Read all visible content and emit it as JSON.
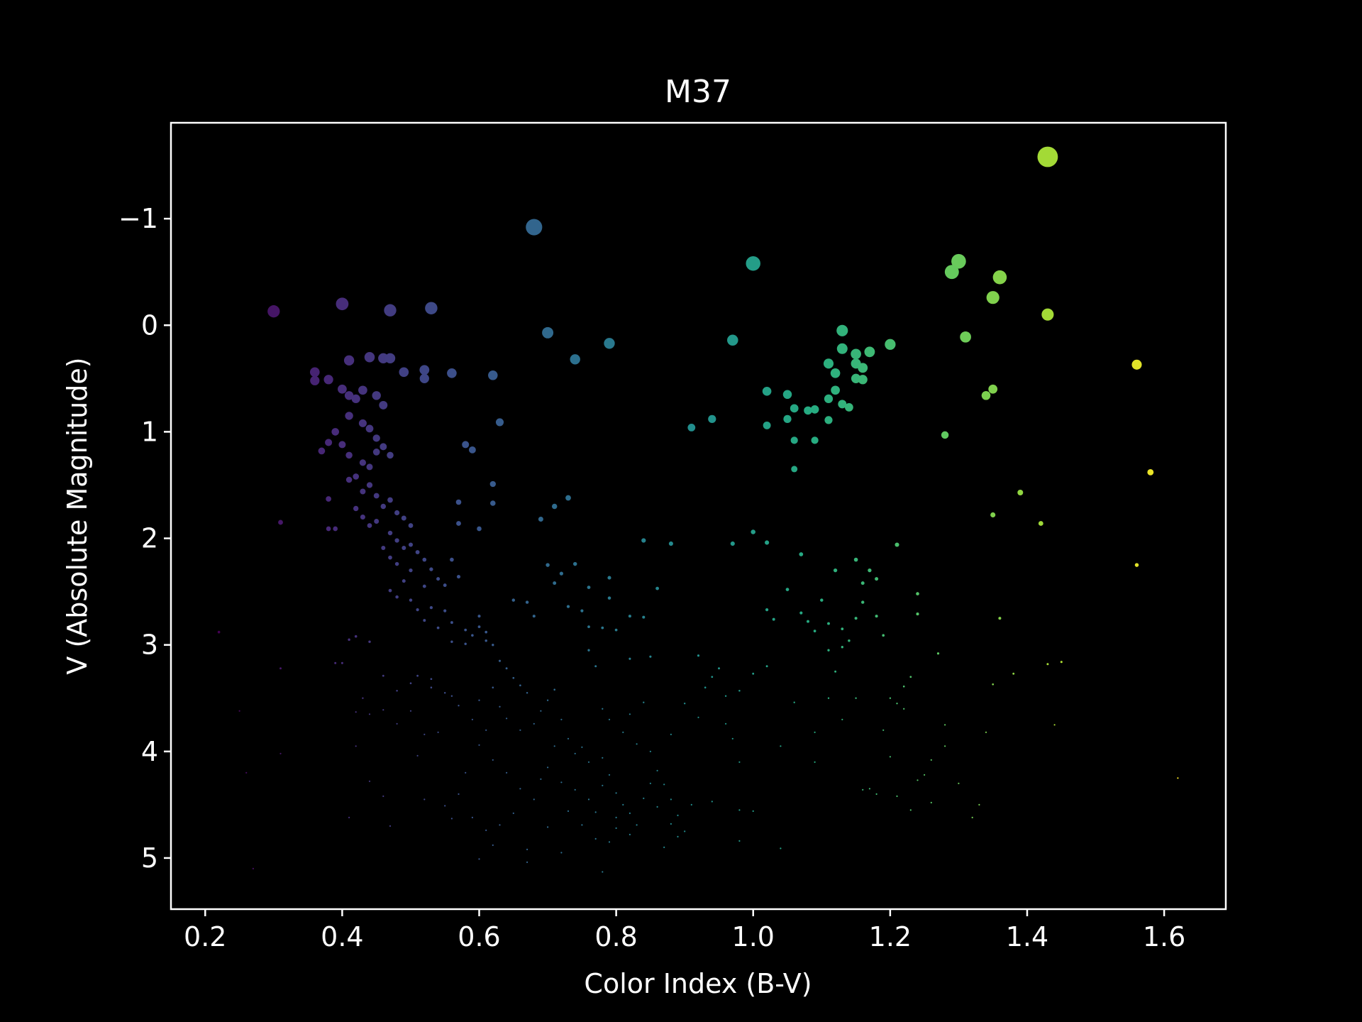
{
  "chart_data": {
    "type": "scatter",
    "title": "M37",
    "xlabel": "Color Index (B-V)",
    "ylabel": "V (Absolute Magnitude)",
    "xlim": [
      0.15,
      1.69
    ],
    "ylim": [
      5.48,
      -1.9
    ],
    "y_inverted": true,
    "grid": false,
    "legend": "none",
    "colormap": "viridis",
    "color_encodes": "x",
    "size_encodes": "brightness",
    "background": "#000000",
    "foreground": "#ffffff",
    "xticks": [
      {
        "value": 0.2,
        "label": "0.2"
      },
      {
        "value": 0.4,
        "label": "0.4"
      },
      {
        "value": 0.6,
        "label": "0.6"
      },
      {
        "value": 0.8,
        "label": "0.8"
      },
      {
        "value": 1.0,
        "label": "1.0"
      },
      {
        "value": 1.2,
        "label": "1.2"
      },
      {
        "value": 1.4,
        "label": "1.4"
      },
      {
        "value": 1.6,
        "label": "1.6"
      }
    ],
    "yticks": [
      {
        "value": -1,
        "label": "−1"
      },
      {
        "value": 0,
        "label": "0"
      },
      {
        "value": 1,
        "label": "1"
      },
      {
        "value": 2,
        "label": "2"
      },
      {
        "value": 3,
        "label": "3"
      },
      {
        "value": 4,
        "label": "4"
      },
      {
        "value": 5,
        "label": "5"
      }
    ],
    "points": [
      [
        1.43,
        -1.58
      ],
      [
        0.68,
        -0.92
      ],
      [
        1.0,
        -0.58
      ],
      [
        1.3,
        -0.6
      ],
      [
        1.29,
        -0.5
      ],
      [
        1.36,
        -0.45
      ],
      [
        1.35,
        -0.26
      ],
      [
        0.3,
        -0.13
      ],
      [
        0.4,
        -0.2
      ],
      [
        0.47,
        -0.14
      ],
      [
        0.53,
        -0.16
      ],
      [
        1.43,
        -0.1
      ],
      [
        0.7,
        0.07
      ],
      [
        0.74,
        0.32
      ],
      [
        0.79,
        0.17
      ],
      [
        0.97,
        0.14
      ],
      [
        1.13,
        0.05
      ],
      [
        1.31,
        0.11
      ],
      [
        1.13,
        0.22
      ],
      [
        1.15,
        0.27
      ],
      [
        1.17,
        0.25
      ],
      [
        1.2,
        0.18
      ],
      [
        1.11,
        0.36
      ],
      [
        1.15,
        0.36
      ],
      [
        1.16,
        0.4
      ],
      [
        1.12,
        0.45
      ],
      [
        1.15,
        0.5
      ],
      [
        1.16,
        0.51
      ],
      [
        1.02,
        0.62
      ],
      [
        1.05,
        0.65
      ],
      [
        1.12,
        0.61
      ],
      [
        1.11,
        0.69
      ],
      [
        1.13,
        0.74
      ],
      [
        1.14,
        0.77
      ],
      [
        1.06,
        0.78
      ],
      [
        1.09,
        0.79
      ],
      [
        1.08,
        0.8
      ],
      [
        1.05,
        0.88
      ],
      [
        1.02,
        0.94
      ],
      [
        0.94,
        0.88
      ],
      [
        0.91,
        0.96
      ],
      [
        1.11,
        0.89
      ],
      [
        1.06,
        1.08
      ],
      [
        1.09,
        1.08
      ],
      [
        1.06,
        1.35
      ],
      [
        1.28,
        1.03
      ],
      [
        1.34,
        0.66
      ],
      [
        1.35,
        0.6
      ],
      [
        1.34,
        0.66
      ],
      [
        1.56,
        0.37
      ],
      [
        1.58,
        1.38
      ],
      [
        1.39,
        1.57
      ],
      [
        1.35,
        1.78
      ],
      [
        1.42,
        1.86
      ],
      [
        1.56,
        2.25
      ],
      [
        0.36,
        0.44
      ],
      [
        0.36,
        0.52
      ],
      [
        0.38,
        0.51
      ],
      [
        0.41,
        0.33
      ],
      [
        0.44,
        0.3
      ],
      [
        0.46,
        0.31
      ],
      [
        0.47,
        0.31
      ],
      [
        0.49,
        0.44
      ],
      [
        0.52,
        0.42
      ],
      [
        0.52,
        0.5
      ],
      [
        0.56,
        0.45
      ],
      [
        0.62,
        0.47
      ],
      [
        0.63,
        0.91
      ],
      [
        0.58,
        1.12
      ],
      [
        0.59,
        1.17
      ],
      [
        0.62,
        1.49
      ],
      [
        0.62,
        1.67
      ],
      [
        0.69,
        1.82
      ],
      [
        0.71,
        1.7
      ],
      [
        0.73,
        1.62
      ],
      [
        0.6,
        1.91
      ],
      [
        0.57,
        1.66
      ],
      [
        0.57,
        1.86
      ],
      [
        0.56,
        2.2
      ],
      [
        0.57,
        2.36
      ],
      [
        0.4,
        0.6
      ],
      [
        0.41,
        0.66
      ],
      [
        0.42,
        0.69
      ],
      [
        0.43,
        0.61
      ],
      [
        0.45,
        0.66
      ],
      [
        0.46,
        0.75
      ],
      [
        0.41,
        0.85
      ],
      [
        0.43,
        0.92
      ],
      [
        0.44,
        0.97
      ],
      [
        0.45,
        1.06
      ],
      [
        0.4,
        1.12
      ],
      [
        0.41,
        1.22
      ],
      [
        0.43,
        1.29
      ],
      [
        0.39,
        1.0
      ],
      [
        0.38,
        1.1
      ],
      [
        0.45,
        1.19
      ],
      [
        0.46,
        1.14
      ],
      [
        0.47,
        1.22
      ],
      [
        0.44,
        1.33
      ],
      [
        0.42,
        1.42
      ],
      [
        0.44,
        1.5
      ],
      [
        0.41,
        1.45
      ],
      [
        0.43,
        1.56
      ],
      [
        0.45,
        1.6
      ],
      [
        0.46,
        1.7
      ],
      [
        0.47,
        1.64
      ],
      [
        0.42,
        1.72
      ],
      [
        0.43,
        1.8
      ],
      [
        0.44,
        1.88
      ],
      [
        0.45,
        1.84
      ],
      [
        0.48,
        1.76
      ],
      [
        0.49,
        1.81
      ],
      [
        0.5,
        1.88
      ],
      [
        0.47,
        1.95
      ],
      [
        0.48,
        2.02
      ],
      [
        0.49,
        2.09
      ],
      [
        0.46,
        2.09
      ],
      [
        0.47,
        2.18
      ],
      [
        0.48,
        2.24
      ],
      [
        0.5,
        2.06
      ],
      [
        0.51,
        2.13
      ],
      [
        0.52,
        2.2
      ],
      [
        0.5,
        2.3
      ],
      [
        0.49,
        2.4
      ],
      [
        0.47,
        2.49
      ],
      [
        0.48,
        2.55
      ],
      [
        0.53,
        2.29
      ],
      [
        0.52,
        2.45
      ],
      [
        0.54,
        2.38
      ],
      [
        0.55,
        2.44
      ],
      [
        0.5,
        2.58
      ],
      [
        0.51,
        2.67
      ],
      [
        0.53,
        2.65
      ],
      [
        0.55,
        2.68
      ],
      [
        0.52,
        2.77
      ],
      [
        0.54,
        2.84
      ],
      [
        0.56,
        2.79
      ],
      [
        0.58,
        2.86
      ],
      [
        0.59,
        2.91
      ],
      [
        0.56,
        2.97
      ],
      [
        0.58,
        2.99
      ],
      [
        0.6,
        2.83
      ],
      [
        0.61,
        2.88
      ],
      [
        0.6,
        2.73
      ],
      [
        0.61,
        2.96
      ],
      [
        0.38,
        1.91
      ],
      [
        0.39,
        1.91
      ],
      [
        0.38,
        1.63
      ],
      [
        0.37,
        1.18
      ],
      [
        0.31,
        1.85
      ],
      [
        0.22,
        2.88
      ],
      [
        0.31,
        3.22
      ],
      [
        0.25,
        3.62
      ],
      [
        0.26,
        4.2
      ],
      [
        0.31,
        4.02
      ],
      [
        0.27,
        5.1
      ],
      [
        0.39,
        3.17
      ],
      [
        0.4,
        3.17
      ],
      [
        0.41,
        2.95
      ],
      [
        0.42,
        2.92
      ],
      [
        0.43,
        3.5
      ],
      [
        0.44,
        2.97
      ],
      [
        0.46,
        3.29
      ],
      [
        0.48,
        3.43
      ],
      [
        0.5,
        3.36
      ],
      [
        0.51,
        3.29
      ],
      [
        0.53,
        3.4
      ],
      [
        0.53,
        3.32
      ],
      [
        0.55,
        3.45
      ],
      [
        0.42,
        3.63
      ],
      [
        0.44,
        3.65
      ],
      [
        0.46,
        3.61
      ],
      [
        0.48,
        3.74
      ],
      [
        0.5,
        3.62
      ],
      [
        0.52,
        3.84
      ],
      [
        0.51,
        4.04
      ],
      [
        0.54,
        3.82
      ],
      [
        0.42,
        3.95
      ],
      [
        0.44,
        4.28
      ],
      [
        0.46,
        4.42
      ],
      [
        0.41,
        4.62
      ],
      [
        0.47,
        4.7
      ],
      [
        0.52,
        4.45
      ],
      [
        0.55,
        4.51
      ],
      [
        0.56,
        4.63
      ],
      [
        0.58,
        4.2
      ],
      [
        0.57,
        4.4
      ],
      [
        0.59,
        4.62
      ],
      [
        0.6,
        5.01
      ],
      [
        0.62,
        4.88
      ],
      [
        0.67,
        5.04
      ],
      [
        0.67,
        4.92
      ],
      [
        0.72,
        4.95
      ],
      [
        0.78,
        5.13
      ],
      [
        0.62,
        3.0
      ],
      [
        0.63,
        3.15
      ],
      [
        0.64,
        3.22
      ],
      [
        0.65,
        3.31
      ],
      [
        0.66,
        3.38
      ],
      [
        0.67,
        3.45
      ],
      [
        0.62,
        3.4
      ],
      [
        0.6,
        3.52
      ],
      [
        0.63,
        3.58
      ],
      [
        0.64,
        3.69
      ],
      [
        0.66,
        3.8
      ],
      [
        0.68,
        3.74
      ],
      [
        0.69,
        3.62
      ],
      [
        0.7,
        3.52
      ],
      [
        0.71,
        3.42
      ],
      [
        0.72,
        3.7
      ],
      [
        0.73,
        3.88
      ],
      [
        0.71,
        3.95
      ],
      [
        0.74,
        4.02
      ],
      [
        0.75,
        3.96
      ],
      [
        0.76,
        4.1
      ],
      [
        0.78,
        4.06
      ],
      [
        0.7,
        4.15
      ],
      [
        0.69,
        4.26
      ],
      [
        0.72,
        4.29
      ],
      [
        0.74,
        4.36
      ],
      [
        0.76,
        4.45
      ],
      [
        0.78,
        4.32
      ],
      [
        0.79,
        4.22
      ],
      [
        0.8,
        4.39
      ],
      [
        0.81,
        4.5
      ],
      [
        0.82,
        4.58
      ],
      [
        0.84,
        4.44
      ],
      [
        0.83,
        4.69
      ],
      [
        0.8,
        4.72
      ],
      [
        0.77,
        4.82
      ],
      [
        0.75,
        4.69
      ],
      [
        0.73,
        4.56
      ],
      [
        0.68,
        4.45
      ],
      [
        0.66,
        4.35
      ],
      [
        0.64,
        4.2
      ],
      [
        0.62,
        4.08
      ],
      [
        0.6,
        3.94
      ],
      [
        0.61,
        3.8
      ],
      [
        0.59,
        3.7
      ],
      [
        0.57,
        3.57
      ],
      [
        0.56,
        3.48
      ],
      [
        0.65,
        4.58
      ],
      [
        0.63,
        4.69
      ],
      [
        0.61,
        4.74
      ],
      [
        0.7,
        4.71
      ],
      [
        0.77,
        4.57
      ],
      [
        0.78,
        3.6
      ],
      [
        0.79,
        3.7
      ],
      [
        0.81,
        3.82
      ],
      [
        0.82,
        3.65
      ],
      [
        0.83,
        3.93
      ],
      [
        0.85,
        4.0
      ],
      [
        0.84,
        3.54
      ],
      [
        0.86,
        4.18
      ],
      [
        0.87,
        4.31
      ],
      [
        0.88,
        4.45
      ],
      [
        0.89,
        4.6
      ],
      [
        0.9,
        4.75
      ],
      [
        0.91,
        4.5
      ],
      [
        0.77,
        3.2
      ],
      [
        0.76,
        3.05
      ],
      [
        0.8,
        2.86
      ],
      [
        0.82,
        2.73
      ],
      [
        0.84,
        2.74
      ],
      [
        0.86,
        2.47
      ],
      [
        0.82,
        3.13
      ],
      [
        0.85,
        3.11
      ],
      [
        0.7,
        2.25
      ],
      [
        0.71,
        2.42
      ],
      [
        0.72,
        2.33
      ],
      [
        0.74,
        2.24
      ],
      [
        0.76,
        2.46
      ],
      [
        0.79,
        2.37
      ],
      [
        0.79,
        2.56
      ],
      [
        0.73,
        2.64
      ],
      [
        0.75,
        2.68
      ],
      [
        0.76,
        2.83
      ],
      [
        0.78,
        2.84
      ],
      [
        0.67,
        2.6
      ],
      [
        0.68,
        2.73
      ],
      [
        0.65,
        2.58
      ],
      [
        0.84,
        2.02
      ],
      [
        0.88,
        2.05
      ],
      [
        0.97,
        2.05
      ],
      [
        1.0,
        1.94
      ],
      [
        1.02,
        2.04
      ],
      [
        1.07,
        2.15
      ],
      [
        0.92,
        3.1
      ],
      [
        0.94,
        3.3
      ],
      [
        0.96,
        3.48
      ],
      [
        0.98,
        3.43
      ],
      [
        1.0,
        3.27
      ],
      [
        1.02,
        3.2
      ],
      [
        0.96,
        3.74
      ],
      [
        0.97,
        3.88
      ],
      [
        0.98,
        4.1
      ],
      [
        0.94,
        4.47
      ],
      [
        0.98,
        4.55
      ],
      [
        1.0,
        4.56
      ],
      [
        0.98,
        4.84
      ],
      [
        1.04,
        4.91
      ],
      [
        1.04,
        3.95
      ],
      [
        1.06,
        3.54
      ],
      [
        1.09,
        3.82
      ],
      [
        1.11,
        3.5
      ],
      [
        1.13,
        3.7
      ],
      [
        1.15,
        3.5
      ],
      [
        1.09,
        4.1
      ],
      [
        1.12,
        3.25
      ],
      [
        1.02,
        2.67
      ],
      [
        1.03,
        2.76
      ],
      [
        1.05,
        2.48
      ],
      [
        1.07,
        2.7
      ],
      [
        1.08,
        2.78
      ],
      [
        1.09,
        2.87
      ],
      [
        1.1,
        2.58
      ],
      [
        1.11,
        2.8
      ],
      [
        1.12,
        2.3
      ],
      [
        1.13,
        2.85
      ],
      [
        1.11,
        3.05
      ],
      [
        1.13,
        3.02
      ],
      [
        1.14,
        2.96
      ],
      [
        1.15,
        2.75
      ],
      [
        1.15,
        2.2
      ],
      [
        1.16,
        2.42
      ],
      [
        1.16,
        2.6
      ],
      [
        1.18,
        2.38
      ],
      [
        1.17,
        2.3
      ],
      [
        1.18,
        2.73
      ],
      [
        1.19,
        2.91
      ],
      [
        1.21,
        2.06
      ],
      [
        1.22,
        3.39
      ],
      [
        1.23,
        3.3
      ],
      [
        1.22,
        3.6
      ],
      [
        1.2,
        3.5
      ],
      [
        1.19,
        3.8
      ],
      [
        1.21,
        3.55
      ],
      [
        1.24,
        2.52
      ],
      [
        1.24,
        2.71
      ],
      [
        1.27,
        3.08
      ],
      [
        1.28,
        3.75
      ],
      [
        1.28,
        3.95
      ],
      [
        1.26,
        4.08
      ],
      [
        1.25,
        4.22
      ],
      [
        1.24,
        4.27
      ],
      [
        1.21,
        4.42
      ],
      [
        1.2,
        4.05
      ],
      [
        1.23,
        4.55
      ],
      [
        1.26,
        4.48
      ],
      [
        1.32,
        4.62
      ],
      [
        1.33,
        4.5
      ],
      [
        1.34,
        3.82
      ],
      [
        1.35,
        3.37
      ],
      [
        1.36,
        2.75
      ],
      [
        1.38,
        3.27
      ],
      [
        1.43,
        3.18
      ],
      [
        1.45,
        3.16
      ],
      [
        1.44,
        3.75
      ],
      [
        1.62,
        4.25
      ],
      [
        1.16,
        4.36
      ],
      [
        1.17,
        4.35
      ],
      [
        1.18,
        4.4
      ],
      [
        1.3,
        4.3
      ],
      [
        0.88,
        3.84
      ],
      [
        0.9,
        3.55
      ],
      [
        0.92,
        3.68
      ],
      [
        0.93,
        3.4
      ],
      [
        0.95,
        3.22
      ],
      [
        0.85,
        4.3
      ],
      [
        0.86,
        4.52
      ],
      [
        0.88,
        4.68
      ],
      [
        0.89,
        4.8
      ],
      [
        0.87,
        4.9
      ],
      [
        0.82,
        4.78
      ],
      [
        0.8,
        4.62
      ],
      [
        0.79,
        4.85
      ]
    ]
  }
}
